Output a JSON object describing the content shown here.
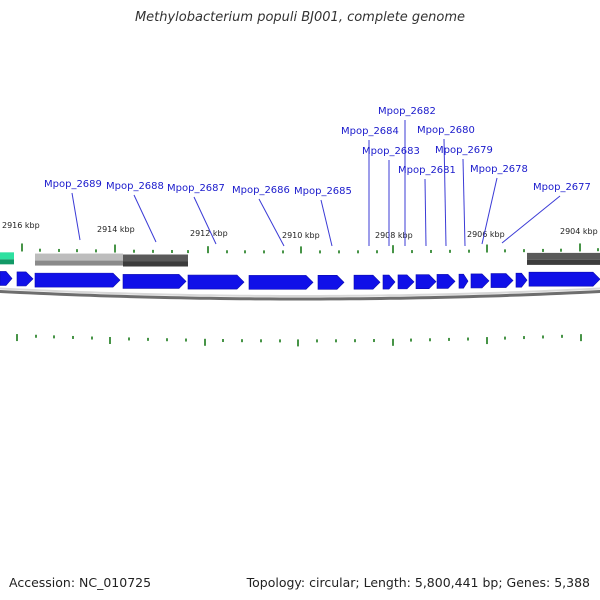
{
  "title": "Methylobacterium populi BJ001, complete genome",
  "footer": {
    "accession": "Accession: NC_010725",
    "summary": "Topology: circular; Length: 5,800,441 bp; Genes: 5,388"
  },
  "colors": {
    "gene": "#1010e8",
    "gene_label": "#1a1acc",
    "tick": "#1a7a1a",
    "backbone": "#9a9a9a",
    "contig_light": "#bdbdbd",
    "contig_dark": "#5a5a5a",
    "feature_green": "#2ee0a0"
  },
  "axis": {
    "ticks": [
      {
        "label": "2916 kbp"
      },
      {
        "label": "2914 kbp"
      },
      {
        "label": "2912 kbp"
      },
      {
        "label": "2910 kbp"
      },
      {
        "label": "2908 kbp"
      },
      {
        "label": "2906 kbp"
      },
      {
        "label": "2904 kbp"
      }
    ]
  },
  "genes": [
    {
      "label": "Mpop_2689"
    },
    {
      "label": "Mpop_2688"
    },
    {
      "label": "Mpop_2687"
    },
    {
      "label": "Mpop_2686"
    },
    {
      "label": "Mpop_2685"
    },
    {
      "label": "Mpop_2684"
    },
    {
      "label": "Mpop_2683"
    },
    {
      "label": "Mpop_2682"
    },
    {
      "label": "Mpop_2681"
    },
    {
      "label": "Mpop_2680"
    },
    {
      "label": "Mpop_2679"
    },
    {
      "label": "Mpop_2678"
    },
    {
      "label": "Mpop_2677"
    }
  ]
}
